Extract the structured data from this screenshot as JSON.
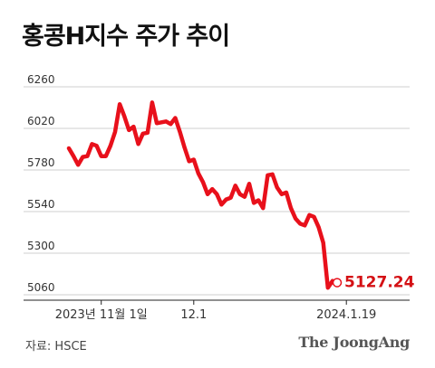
{
  "chart_data": {
    "type": "line",
    "title": "홍콩H지수 주가 추이",
    "y_ticks": [
      6260,
      6020,
      5780,
      5540,
      5300,
      5060
    ],
    "ylim": [
      5060,
      6260
    ],
    "x_tick_labels": [
      {
        "label": "2023년 11월 1일",
        "index": 7
      },
      {
        "label": "12.1",
        "index": 27
      },
      {
        "label": "2024.1.19",
        "index": 60
      }
    ],
    "last_value_label": "5127.24",
    "grid": true,
    "series": [
      {
        "color": "#e8101b",
        "values": [
          5905,
          5860,
          5810,
          5855,
          5860,
          5930,
          5920,
          5860,
          5860,
          5920,
          6000,
          6160,
          6090,
          6010,
          6030,
          5930,
          5990,
          5995,
          6170,
          6050,
          6055,
          6060,
          6045,
          6080,
          6000,
          5910,
          5830,
          5840,
          5760,
          5710,
          5640,
          5670,
          5640,
          5580,
          5610,
          5620,
          5690,
          5640,
          5625,
          5700,
          5590,
          5605,
          5560,
          5750,
          5755,
          5680,
          5640,
          5650,
          5560,
          5500,
          5470,
          5460,
          5520,
          5510,
          5450,
          5360,
          5100,
          5140,
          5130
        ]
      }
    ]
  },
  "footer": {
    "source": "자료: HSCE",
    "brand": "The JoongAng"
  }
}
